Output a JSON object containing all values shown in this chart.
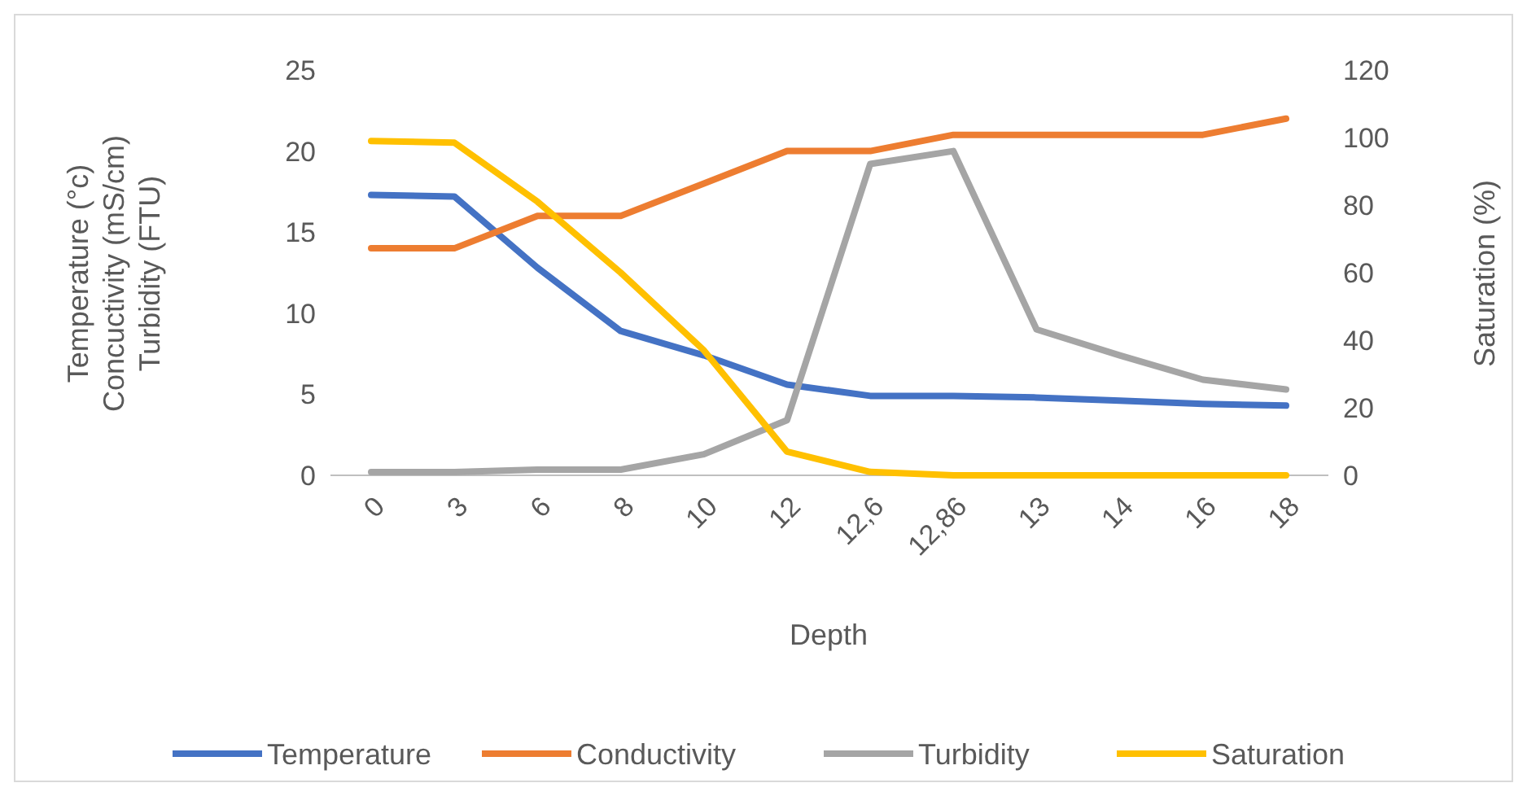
{
  "chart_data": {
    "type": "line",
    "xlabel": "Depth",
    "ylabel": [
      "Temperature (°c)",
      "Concuctivity (mS/cm)",
      "Turbidity (FTU)"
    ],
    "y2label": "Saturation (%)",
    "categories": [
      "0",
      "3",
      "6",
      "8",
      "10",
      "12",
      "12,6",
      "12,86",
      "13",
      "14",
      "16",
      "18"
    ],
    "series": [
      {
        "name": "Temperature",
        "color": "#4472c4",
        "values": [
          17.3,
          17.2,
          12.8,
          8.9,
          7.4,
          5.6,
          4.9,
          4.9,
          4.8,
          4.6,
          4.4,
          4.3
        ]
      },
      {
        "name": "Conductivity",
        "color": "#ed7d31",
        "values": [
          14,
          14,
          16,
          16,
          18,
          20,
          20,
          21,
          21,
          21,
          21,
          22
        ]
      },
      {
        "name": "Turbidity",
        "color": "#a5a5a5",
        "values": [
          0.2,
          0.2,
          0.35,
          0.35,
          1.3,
          3.4,
          19.2,
          20,
          9,
          7.4,
          5.9,
          5.3
        ]
      },
      {
        "name": "Saturation",
        "color": "#ffc000",
        "axis": "y2",
        "values": [
          99,
          98.5,
          81,
          60,
          37,
          7,
          1,
          0,
          0,
          0,
          0,
          0
        ]
      }
    ],
    "ylim": [
      0,
      25
    ],
    "yticks": [
      0,
      5,
      10,
      15,
      20,
      25
    ],
    "y2lim": [
      0,
      120
    ],
    "y2ticks": [
      0,
      20,
      40,
      60,
      80,
      100,
      120
    ],
    "grid": false,
    "legend": "bottom",
    "marker": "none",
    "line_style": "solid"
  }
}
